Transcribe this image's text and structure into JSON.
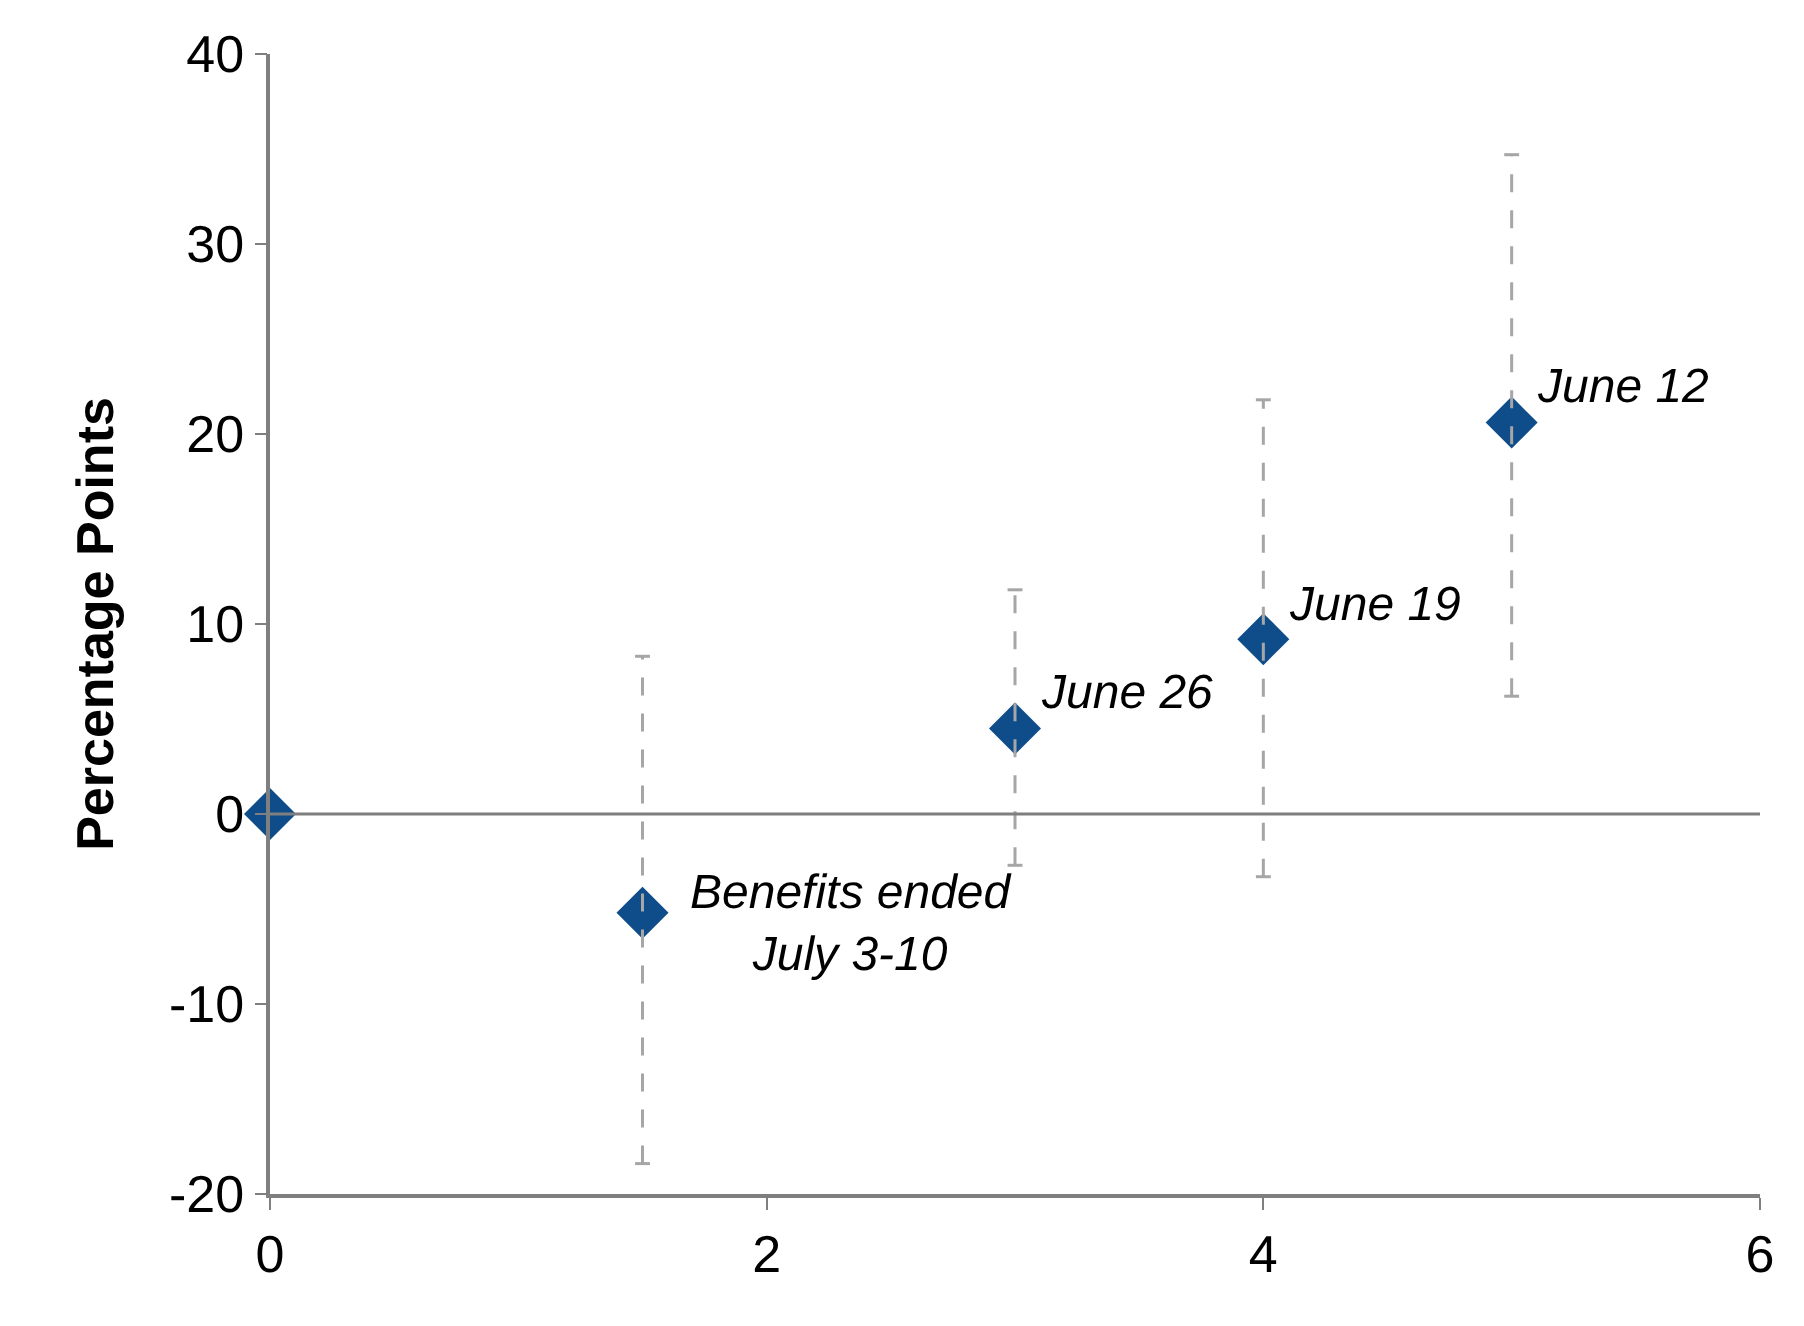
{
  "chart_data": {
    "type": "scatter",
    "ylabel": "Percentage Points",
    "x": [
      0,
      1.5,
      3,
      4,
      5
    ],
    "values": [
      0,
      -5.2,
      4.5,
      9.2,
      20.6
    ],
    "color": "#0f4c8a",
    "marker": "diamond",
    "errors": [
      null,
      [
        -18.4,
        8.3
      ],
      [
        -2.7,
        11.8
      ],
      [
        -3.3,
        21.8
      ],
      [
        6.2,
        34.7
      ]
    ],
    "xlim": [
      0,
      6
    ],
    "xticks": [
      0,
      2,
      4,
      6
    ],
    "ylim": [
      -20,
      40
    ],
    "yticks": [
      -20,
      -10,
      0,
      10,
      20,
      30,
      40
    ],
    "ref_lines": [
      {
        "axis": "y",
        "value": 0,
        "color": "#7f7f7f"
      }
    ],
    "annotations": [
      {
        "text": "Benefits ended\nJuly 3-10",
        "x": 1.5,
        "y": -5.2
      },
      {
        "text": "June 26",
        "x": 3,
        "y": 4.5
      },
      {
        "text": "June 19",
        "x": 4,
        "y": 9.2
      },
      {
        "text": "June 12",
        "x": 5,
        "y": 20.6
      }
    ]
  }
}
